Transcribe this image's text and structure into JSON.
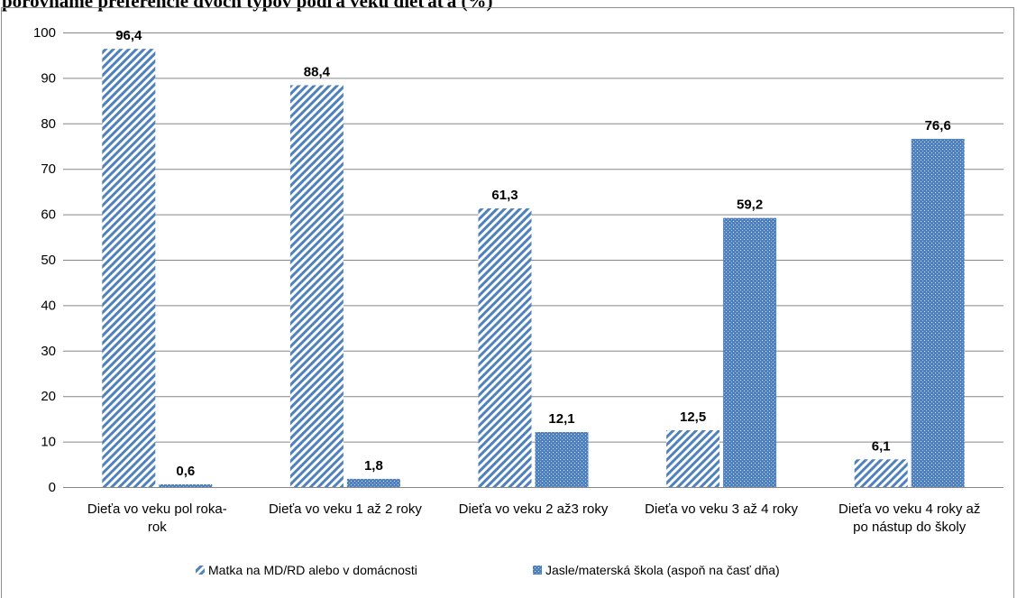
{
  "page_heading": "porovnáme preferencie dvoch typov podľa veku dieťaťa (%)",
  "chart_data": {
    "type": "bar",
    "categories": [
      [
        "Dieťa vo veku  pol roka-",
        "rok"
      ],
      [
        "Dieťa vo veku 1 až 2 roky"
      ],
      [
        "Dieťa vo veku 2 až3 roky"
      ],
      [
        "Dieťa vo veku 3 až 4 roky"
      ],
      [
        "Dieťa vo veku 4 roky až",
        "po nástup do školy"
      ]
    ],
    "series": [
      {
        "name": "Matka na MD/RD alebo v domácnosti",
        "values": [
          96.4,
          88.4,
          61.3,
          12.5,
          6.1
        ],
        "labels": [
          "96,4",
          "88,4",
          "61,3",
          "12,5",
          "6,1"
        ],
        "color": "#4f81bd",
        "pattern": "diagonal-stripes"
      },
      {
        "name": "Jasle/materská škola (aspoň na časť dňa)",
        "values": [
          0.6,
          1.8,
          12.1,
          59.2,
          76.6
        ],
        "labels": [
          "0,6",
          "1,8",
          "12,1",
          "59,2",
          "76,6"
        ],
        "color": "#4f81bd",
        "pattern": "dotted"
      }
    ],
    "y_ticks": [
      "0",
      "10",
      "20",
      "30",
      "40",
      "50",
      "60",
      "70",
      "80",
      "90",
      "100"
    ],
    "ylim": [
      0,
      100
    ],
    "grid": true,
    "legend_position": "bottom"
  }
}
